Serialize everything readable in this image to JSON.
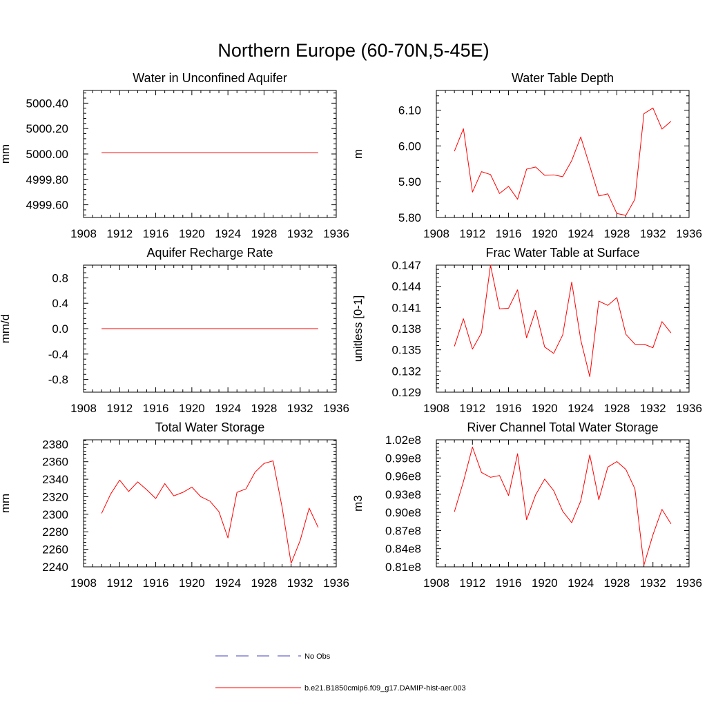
{
  "figure": {
    "title": "Northern Europe (60-70N,5-45E)",
    "series_color": "#ff0000",
    "obs_color": "#3f3fbf"
  },
  "legend": [
    {
      "label": "No Obs",
      "style": "dashed",
      "color": "#3f3fbf"
    },
    {
      "label": "b.e21.B1850cmip6.f09_g17.DAMIP-hist-aer.003",
      "style": "solid",
      "color": "#ff0000"
    }
  ],
  "chart_data": [
    {
      "type": "line",
      "title": "Water in Unconfined Aquifer",
      "ylabel": "mm",
      "xlim": [
        1908,
        1936
      ],
      "ylim": [
        4999.5,
        5000.5
      ],
      "xticks": [
        1908,
        1912,
        1916,
        1920,
        1924,
        1928,
        1932,
        1936
      ],
      "yticks": [
        4999.6,
        4999.8,
        5000.0,
        5000.2,
        5000.4
      ],
      "ytick_labels": [
        "4999.60",
        "4999.80",
        "5000.00",
        "5000.20",
        "5000.40"
      ],
      "x": [
        1910,
        1911,
        1912,
        1913,
        1914,
        1915,
        1916,
        1917,
        1918,
        1919,
        1920,
        1921,
        1922,
        1923,
        1924,
        1925,
        1926,
        1927,
        1928,
        1929,
        1930,
        1931,
        1932,
        1933,
        1934
      ],
      "series": [
        {
          "name": "b.e21.B1850cmip6.f09_g17.DAMIP-hist-aer.003",
          "values": [
            5000.01,
            5000.01,
            5000.01,
            5000.01,
            5000.01,
            5000.01,
            5000.01,
            5000.01,
            5000.01,
            5000.01,
            5000.01,
            5000.01,
            5000.01,
            5000.01,
            5000.01,
            5000.01,
            5000.01,
            5000.01,
            5000.01,
            5000.01,
            5000.01,
            5000.01,
            5000.01,
            5000.01,
            5000.01
          ]
        }
      ]
    },
    {
      "type": "line",
      "title": "Water Table Depth",
      "ylabel": "m",
      "xlim": [
        1908,
        1936
      ],
      "ylim": [
        5.8,
        6.155
      ],
      "xticks": [
        1908,
        1912,
        1916,
        1920,
        1924,
        1928,
        1932,
        1936
      ],
      "yticks": [
        5.8,
        5.9,
        6.0,
        6.1
      ],
      "ytick_labels": [
        "5.80",
        "5.90",
        "6.00",
        "6.10"
      ],
      "x": [
        1910,
        1911,
        1912,
        1913,
        1914,
        1915,
        1916,
        1917,
        1918,
        1919,
        1920,
        1921,
        1922,
        1923,
        1924,
        1925,
        1926,
        1927,
        1928,
        1929,
        1930,
        1931,
        1932,
        1933,
        1934
      ],
      "series": [
        {
          "name": "b.e21.B1850cmip6.f09_g17.DAMIP-hist-aer.003",
          "values": [
            5.985,
            6.048,
            5.871,
            5.928,
            5.92,
            5.867,
            5.887,
            5.851,
            5.935,
            5.941,
            5.918,
            5.919,
            5.914,
            5.959,
            6.025,
            5.944,
            5.86,
            5.866,
            5.811,
            5.806,
            5.851,
            6.09,
            6.106,
            6.047,
            6.069
          ]
        }
      ]
    },
    {
      "type": "line",
      "title": "Aquifer Recharge Rate",
      "ylabel": "mm/d",
      "xlim": [
        1908,
        1936
      ],
      "ylim": [
        -1.0,
        1.0
      ],
      "xticks": [
        1908,
        1912,
        1916,
        1920,
        1924,
        1928,
        1932,
        1936
      ],
      "yticks": [
        -0.8,
        -0.4,
        0.0,
        0.4,
        0.8
      ],
      "ytick_labels": [
        "-0.8",
        "-0.4",
        "0.0",
        "0.4",
        "0.8"
      ],
      "x": [
        1910,
        1911,
        1912,
        1913,
        1914,
        1915,
        1916,
        1917,
        1918,
        1919,
        1920,
        1921,
        1922,
        1923,
        1924,
        1925,
        1926,
        1927,
        1928,
        1929,
        1930,
        1931,
        1932,
        1933,
        1934
      ],
      "series": [
        {
          "name": "b.e21.B1850cmip6.f09_g17.DAMIP-hist-aer.003",
          "values": [
            0,
            0,
            0,
            0,
            0,
            0,
            0,
            0,
            0,
            0,
            0,
            0,
            0,
            0,
            0,
            0,
            0,
            0,
            0,
            0,
            0,
            0,
            0,
            0,
            0
          ]
        }
      ]
    },
    {
      "type": "line",
      "title": "Frac Water Table at Surface",
      "ylabel": "unitless [0-1]",
      "xlim": [
        1908,
        1936
      ],
      "ylim": [
        0.129,
        0.147
      ],
      "xticks": [
        1908,
        1912,
        1916,
        1920,
        1924,
        1928,
        1932,
        1936
      ],
      "yticks": [
        0.129,
        0.132,
        0.135,
        0.138,
        0.141,
        0.144,
        0.147
      ],
      "ytick_labels": [
        "0.129",
        "0.132",
        "0.135",
        "0.138",
        "0.141",
        "0.144",
        "0.147"
      ],
      "x": [
        1910,
        1911,
        1912,
        1913,
        1914,
        1915,
        1916,
        1917,
        1918,
        1919,
        1920,
        1921,
        1922,
        1923,
        1924,
        1925,
        1926,
        1927,
        1928,
        1929,
        1930,
        1931,
        1932,
        1933,
        1934
      ],
      "series": [
        {
          "name": "b.e21.B1850cmip6.f09_g17.DAMIP-hist-aer.003",
          "values": [
            0.1355,
            0.1394,
            0.1351,
            0.1374,
            0.147,
            0.1408,
            0.1409,
            0.1435,
            0.1367,
            0.1406,
            0.1354,
            0.1345,
            0.1371,
            0.1446,
            0.1364,
            0.1312,
            0.1419,
            0.1413,
            0.1424,
            0.1372,
            0.1358,
            0.1358,
            0.1353,
            0.139,
            0.1374
          ]
        }
      ]
    },
    {
      "type": "line",
      "title": "Total Water Storage",
      "ylabel": "mm",
      "xlim": [
        1908,
        1936
      ],
      "ylim": [
        2240,
        2385
      ],
      "xticks": [
        1908,
        1912,
        1916,
        1920,
        1924,
        1928,
        1932,
        1936
      ],
      "yticks": [
        2240,
        2260,
        2280,
        2300,
        2320,
        2340,
        2360,
        2380
      ],
      "ytick_labels": [
        "2240",
        "2260",
        "2280",
        "2300",
        "2320",
        "2340",
        "2360",
        "2380"
      ],
      "x": [
        1910,
        1911,
        1912,
        1913,
        1914,
        1915,
        1916,
        1917,
        1918,
        1919,
        1920,
        1921,
        1922,
        1923,
        1924,
        1925,
        1926,
        1927,
        1928,
        1929,
        1930,
        1931,
        1932,
        1933,
        1934
      ],
      "series": [
        {
          "name": "b.e21.B1850cmip6.f09_g17.DAMIP-hist-aer.003",
          "values": [
            2301,
            2323,
            2339,
            2326,
            2337,
            2328,
            2318,
            2335,
            2321,
            2325,
            2331,
            2320,
            2315,
            2303,
            2273,
            2325,
            2329,
            2348,
            2358,
            2361,
            2308,
            2244,
            2270,
            2307,
            2285
          ]
        }
      ]
    },
    {
      "type": "line",
      "title": "River Channel Total Water Storage",
      "ylabel": "m3",
      "xlim": [
        1908,
        1936
      ],
      "ylim": [
        81000000.0,
        102000000.0
      ],
      "xticks": [
        1908,
        1912,
        1916,
        1920,
        1924,
        1928,
        1932,
        1936
      ],
      "yticks": [
        81000000.0,
        84000000.0,
        87000000.0,
        90000000.0,
        93000000.0,
        96000000.0,
        99000000.0,
        102000000.0
      ],
      "ytick_labels": [
        "0.81e8",
        "0.84e8",
        "0.87e8",
        "0.90e8",
        "0.93e8",
        "0.96e8",
        "0.99e8",
        "1.02e8"
      ],
      "x": [
        1910,
        1911,
        1912,
        1913,
        1914,
        1915,
        1916,
        1917,
        1918,
        1919,
        1920,
        1921,
        1922,
        1923,
        1924,
        1925,
        1926,
        1927,
        1928,
        1929,
        1930,
        1931,
        1932,
        1933,
        1934
      ],
      "series": [
        {
          "name": "b.e21.B1850cmip6.f09_g17.DAMIP-hist-aer.003",
          "values": [
            90100000.0,
            95100000.0,
            100800000.0,
            96600000.0,
            95800000.0,
            96100000.0,
            92800000.0,
            99700000.0,
            88800000.0,
            92900000.0,
            95500000.0,
            93600000.0,
            90200000.0,
            88300000.0,
            91900000.0,
            99500000.0,
            92100000.0,
            97500000.0,
            98400000.0,
            97100000.0,
            93900000.0,
            81300000.0,
            86300000.0,
            90500000.0,
            88100000.0
          ]
        }
      ]
    }
  ]
}
